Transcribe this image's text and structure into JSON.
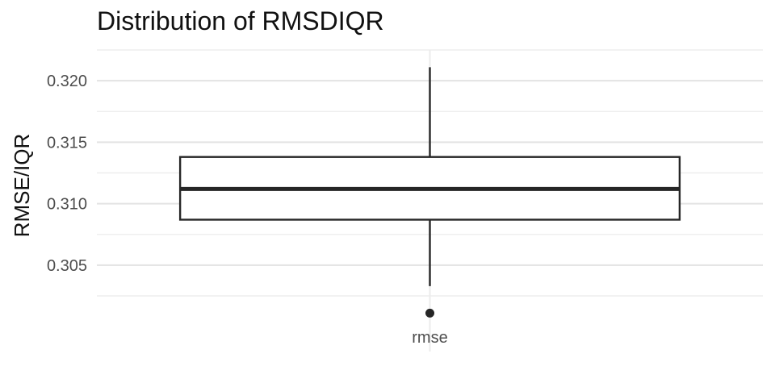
{
  "chart_data": {
    "type": "box",
    "title": "Distribution of RMSDIQR",
    "xlabel": "",
    "ylabel": "RMSE/IQR",
    "categories": [
      "rmse"
    ],
    "ylim": [
      0.3006,
      0.3225
    ],
    "yticks": [
      0.305,
      0.31,
      0.315,
      0.32
    ],
    "ytick_labels": [
      "0.305",
      "0.310",
      "0.315",
      "0.320"
    ],
    "grid": true,
    "legend": "none",
    "boxes": [
      {
        "category": "rmse",
        "whisker_low": 0.3033,
        "q1": 0.3087,
        "median": 0.3112,
        "q3": 0.3138,
        "whisker_high": 0.3211,
        "outliers": [
          0.3011
        ]
      }
    ]
  }
}
